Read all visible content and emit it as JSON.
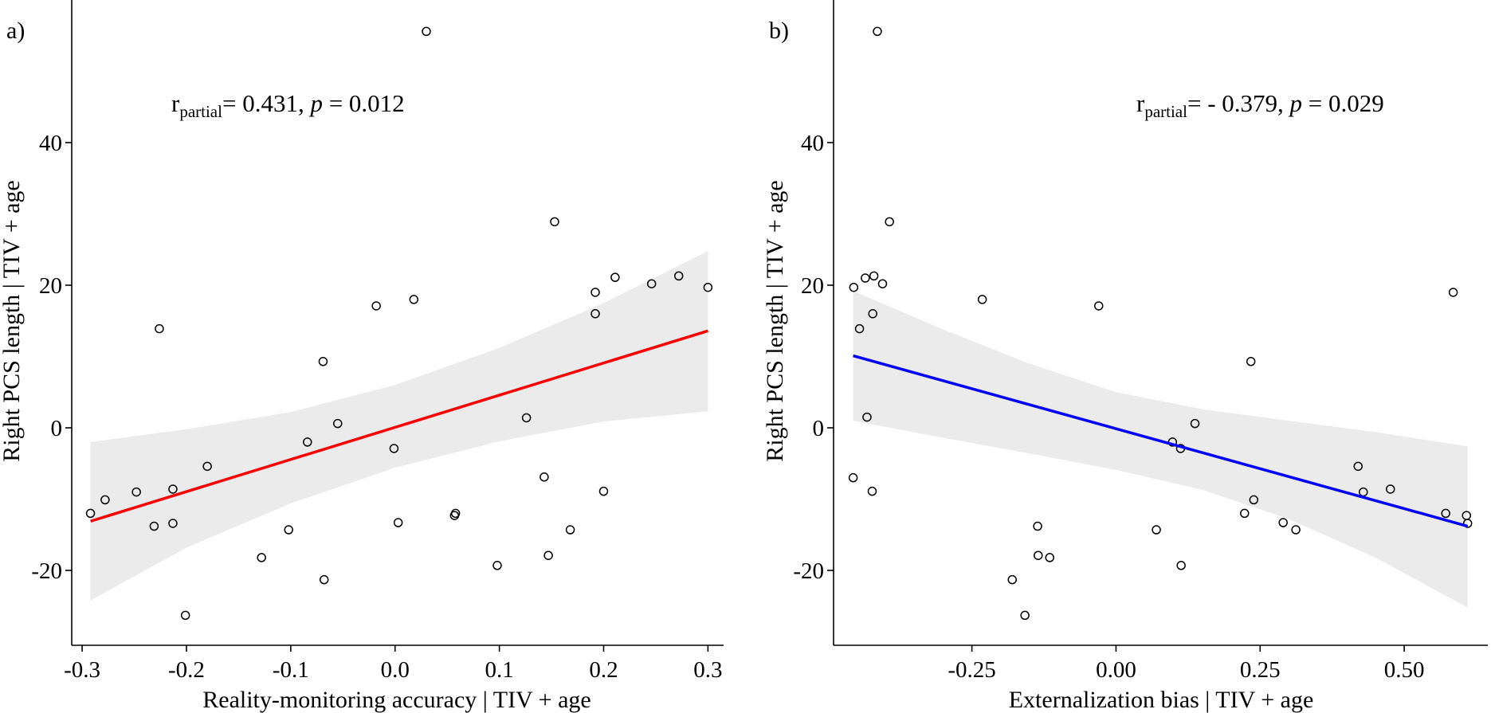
{
  "chart_data": [
    {
      "type": "scatter",
      "panel_label": "a)",
      "title": "",
      "xlabel": "Reality-monitoring accuracy | TIV + age",
      "ylabel": "Right PCS length | TIV + age",
      "xlim": [
        -0.31,
        0.315
      ],
      "ylim": [
        -30.5,
        60
      ],
      "xticks": [
        -0.3,
        -0.2,
        -0.1,
        0.0,
        0.1,
        0.2,
        0.3
      ],
      "xtick_labels": [
        "-0.3",
        "-0.2",
        "-0.1",
        "0.0",
        "0.1",
        "0.2",
        "0.3"
      ],
      "yticks": [
        -20,
        0,
        20,
        40
      ],
      "ytick_labels": [
        "-20",
        "0",
        "20",
        "40"
      ],
      "annotation": {
        "r_label": "r",
        "r_sub": "partial",
        "r_value": "= 0.431, ",
        "p_label": "p",
        "p_value": " = 0.012"
      },
      "fit": {
        "color": "#ff0000",
        "x": [
          -0.292,
          0.3
        ],
        "y": [
          -13.1,
          13.6
        ]
      },
      "ci_band": {
        "x": [
          -0.292,
          -0.2,
          -0.1,
          0.0,
          0.1,
          0.2,
          0.3
        ],
        "upper": [
          -2.0,
          -0.2,
          2.2,
          6.0,
          11.2,
          17.5,
          24.8
        ],
        "lower": [
          -24.2,
          -16.8,
          -10.6,
          -5.6,
          -1.9,
          0.9,
          2.3
        ]
      },
      "points": [
        {
          "x": -0.292,
          "y": -12.0
        },
        {
          "x": -0.278,
          "y": -10.1
        },
        {
          "x": -0.248,
          "y": -9.0
        },
        {
          "x": -0.231,
          "y": -13.8
        },
        {
          "x": -0.226,
          "y": 13.9
        },
        {
          "x": -0.213,
          "y": -8.6
        },
        {
          "x": -0.213,
          "y": -13.4
        },
        {
          "x": -0.201,
          "y": -26.3
        },
        {
          "x": -0.18,
          "y": -5.4
        },
        {
          "x": -0.128,
          "y": -18.2
        },
        {
          "x": -0.102,
          "y": -14.3
        },
        {
          "x": -0.084,
          "y": -2.0
        },
        {
          "x": -0.069,
          "y": 9.3
        },
        {
          "x": -0.068,
          "y": -21.3
        },
        {
          "x": -0.055,
          "y": 0.6
        },
        {
          "x": -0.018,
          "y": 17.1
        },
        {
          "x": -0.001,
          "y": -2.9
        },
        {
          "x": 0.003,
          "y": -13.3
        },
        {
          "x": 0.018,
          "y": 18.0
        },
        {
          "x": 0.03,
          "y": 55.6
        },
        {
          "x": 0.057,
          "y": -12.3
        },
        {
          "x": 0.058,
          "y": -12.0
        },
        {
          "x": 0.098,
          "y": -19.3
        },
        {
          "x": 0.126,
          "y": 1.4
        },
        {
          "x": 0.143,
          "y": -6.9
        },
        {
          "x": 0.147,
          "y": -17.9
        },
        {
          "x": 0.153,
          "y": 28.9
        },
        {
          "x": 0.168,
          "y": -14.3
        },
        {
          "x": 0.192,
          "y": 19.0
        },
        {
          "x": 0.192,
          "y": 16.0
        },
        {
          "x": 0.2,
          "y": -8.9
        },
        {
          "x": 0.211,
          "y": 21.1
        },
        {
          "x": 0.246,
          "y": 20.2
        },
        {
          "x": 0.272,
          "y": 21.3
        },
        {
          "x": 0.3,
          "y": 19.7
        }
      ]
    },
    {
      "type": "scatter",
      "panel_label": "b)",
      "title": "",
      "xlabel": "Externalization bias | TIV + age",
      "ylabel": "Right PCS length | TIV + age",
      "xlim": [
        -0.49,
        0.645
      ],
      "ylim": [
        -30.5,
        60
      ],
      "xticks": [
        -0.25,
        0.0,
        0.25,
        0.5
      ],
      "xtick_labels": [
        "-0.25",
        "0.00",
        "0.25",
        "0.50"
      ],
      "yticks": [
        -20,
        0,
        20,
        40
      ],
      "ytick_labels": [
        "-20",
        "0",
        "20",
        "40"
      ],
      "annotation": {
        "r_label": "r",
        "r_sub": "partial",
        "r_value": "= - 0.379, ",
        "p_label": "p",
        "p_value": " = 0.029"
      },
      "fit": {
        "color": "#0000ff",
        "x": [
          -0.456,
          0.61
        ],
        "y": [
          10.1,
          -13.8
        ]
      },
      "ci_band": {
        "x": [
          -0.456,
          -0.3,
          -0.15,
          0.0,
          0.15,
          0.3,
          0.45,
          0.61
        ],
        "upper": [
          19.2,
          13.8,
          9.0,
          5.0,
          2.6,
          1.0,
          -0.6,
          -2.6
        ],
        "lower": [
          1.0,
          -1.4,
          -3.6,
          -5.9,
          -8.7,
          -12.8,
          -18.2,
          -25.2
        ]
      },
      "points": [
        {
          "x": -0.456,
          "y": -7.0
        },
        {
          "x": -0.455,
          "y": 19.7
        },
        {
          "x": -0.445,
          "y": 13.9
        },
        {
          "x": -0.435,
          "y": 21.0
        },
        {
          "x": -0.432,
          "y": 1.5
        },
        {
          "x": -0.423,
          "y": -8.9
        },
        {
          "x": -0.422,
          "y": 16.0
        },
        {
          "x": -0.42,
          "y": 21.3
        },
        {
          "x": -0.414,
          "y": 55.6
        },
        {
          "x": -0.405,
          "y": 20.2
        },
        {
          "x": -0.393,
          "y": 28.9
        },
        {
          "x": -0.232,
          "y": 18.0
        },
        {
          "x": -0.18,
          "y": -21.3
        },
        {
          "x": -0.158,
          "y": -26.3
        },
        {
          "x": -0.136,
          "y": -13.8
        },
        {
          "x": -0.135,
          "y": -17.9
        },
        {
          "x": -0.115,
          "y": -18.2
        },
        {
          "x": -0.03,
          "y": 17.1
        },
        {
          "x": 0.07,
          "y": -14.3
        },
        {
          "x": 0.098,
          "y": -2.0
        },
        {
          "x": 0.112,
          "y": -2.9
        },
        {
          "x": 0.113,
          "y": -19.3
        },
        {
          "x": 0.137,
          "y": 0.6
        },
        {
          "x": 0.223,
          "y": -12.0
        },
        {
          "x": 0.234,
          "y": 9.3
        },
        {
          "x": 0.239,
          "y": -10.1
        },
        {
          "x": 0.29,
          "y": -13.3
        },
        {
          "x": 0.312,
          "y": -14.3
        },
        {
          "x": 0.42,
          "y": -5.4
        },
        {
          "x": 0.429,
          "y": -9.0
        },
        {
          "x": 0.476,
          "y": -8.6
        },
        {
          "x": 0.572,
          "y": -12.0
        },
        {
          "x": 0.585,
          "y": 19.0
        },
        {
          "x": 0.608,
          "y": -12.3
        },
        {
          "x": 0.61,
          "y": -13.4
        }
      ]
    }
  ]
}
